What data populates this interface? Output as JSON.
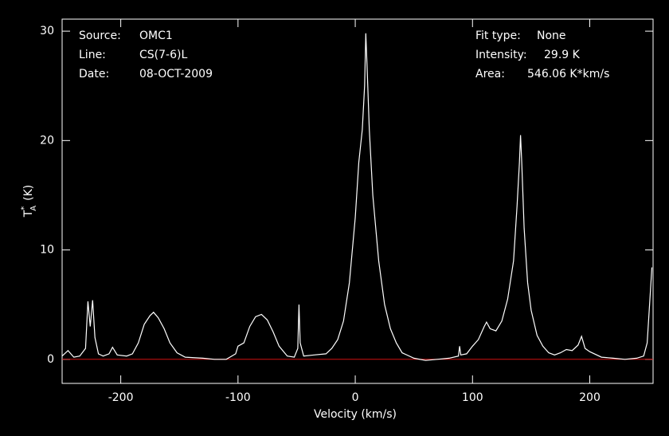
{
  "chart_data": {
    "type": "line",
    "xlabel": "Velocity (km/s)",
    "ylabel": {
      "base": "T",
      "sup": "*",
      "sub": "A",
      "unit": "(K)"
    },
    "info_left": [
      {
        "label": "Source:",
        "value": "OMC1"
      },
      {
        "label": "Line:",
        "value": "CS(7-6)L"
      },
      {
        "label": "Date:",
        "value": "08-OCT-2009"
      }
    ],
    "info_right": [
      {
        "label": "Fit type:",
        "value": "None"
      },
      {
        "label": "Intensity:",
        "value": "29.9 K"
      },
      {
        "label": "Area:",
        "value": "546.06 K*km/s"
      }
    ],
    "xlim": [
      -250,
      254
    ],
    "ylim": [
      -2.2,
      31.1
    ],
    "xticks": [
      -200,
      -100,
      0,
      100,
      200
    ],
    "yticks": [
      0,
      10,
      20,
      30
    ],
    "baseline": 0,
    "baseline_color": "#d01010",
    "series": [
      {
        "color": "#ffffff",
        "x": [
          -250,
          -245,
          -240,
          -235,
          -230,
          -228,
          -226,
          -224,
          -222,
          -219,
          -215,
          -210,
          -207,
          -203,
          -195,
          -190,
          -185,
          -180,
          -175,
          -172,
          -168,
          -163,
          -158,
          -152,
          -145,
          -130,
          -120,
          -110,
          -102,
          -100,
          -95,
          -90,
          -85,
          -80,
          -75,
          -70,
          -65,
          -58,
          -52,
          -49,
          -48,
          -47,
          -44,
          -35,
          -25,
          -20,
          -15,
          -10,
          -5,
          0,
          3,
          6,
          8,
          9,
          10,
          12,
          15,
          20,
          25,
          30,
          35,
          40,
          50,
          60,
          70,
          80,
          88,
          89,
          90,
          95,
          100,
          105,
          110,
          112,
          115,
          120,
          125,
          130,
          135,
          138,
          140,
          141,
          142,
          144,
          147,
          150,
          155,
          160,
          165,
          170,
          175,
          180,
          185,
          190,
          193,
          196,
          200,
          210,
          220,
          230,
          240,
          246,
          249,
          251,
          253
        ],
        "values": [
          0.3,
          0.8,
          0.2,
          0.3,
          1,
          5.3,
          3,
          5.4,
          2,
          0.5,
          0.3,
          0.5,
          1.1,
          0.4,
          0.3,
          0.5,
          1.5,
          3.2,
          4,
          4.3,
          3.8,
          2.8,
          1.5,
          0.6,
          0.2,
          0.1,
          0,
          0,
          0.5,
          1.2,
          1.5,
          3,
          3.9,
          4.1,
          3.6,
          2.5,
          1.2,
          0.3,
          0.2,
          1,
          5,
          1.5,
          0.3,
          0.4,
          0.5,
          1,
          1.8,
          3.5,
          7,
          13,
          18,
          21,
          25,
          29.8,
          27,
          21,
          15,
          9,
          5,
          2.8,
          1.5,
          0.6,
          0.1,
          -0.1,
          0,
          0.1,
          0.3,
          1.2,
          0.4,
          0.5,
          1.2,
          1.8,
          3,
          3.4,
          2.8,
          2.6,
          3.5,
          5.5,
          9,
          14,
          18,
          20.5,
          18,
          12,
          7,
          4.5,
          2.2,
          1.2,
          0.6,
          0.4,
          0.6,
          0.9,
          0.8,
          1.3,
          2.1,
          1,
          0.7,
          0.2,
          0.1,
          0,
          0.1,
          0.3,
          1.5,
          5,
          8.4
        ]
      }
    ]
  }
}
